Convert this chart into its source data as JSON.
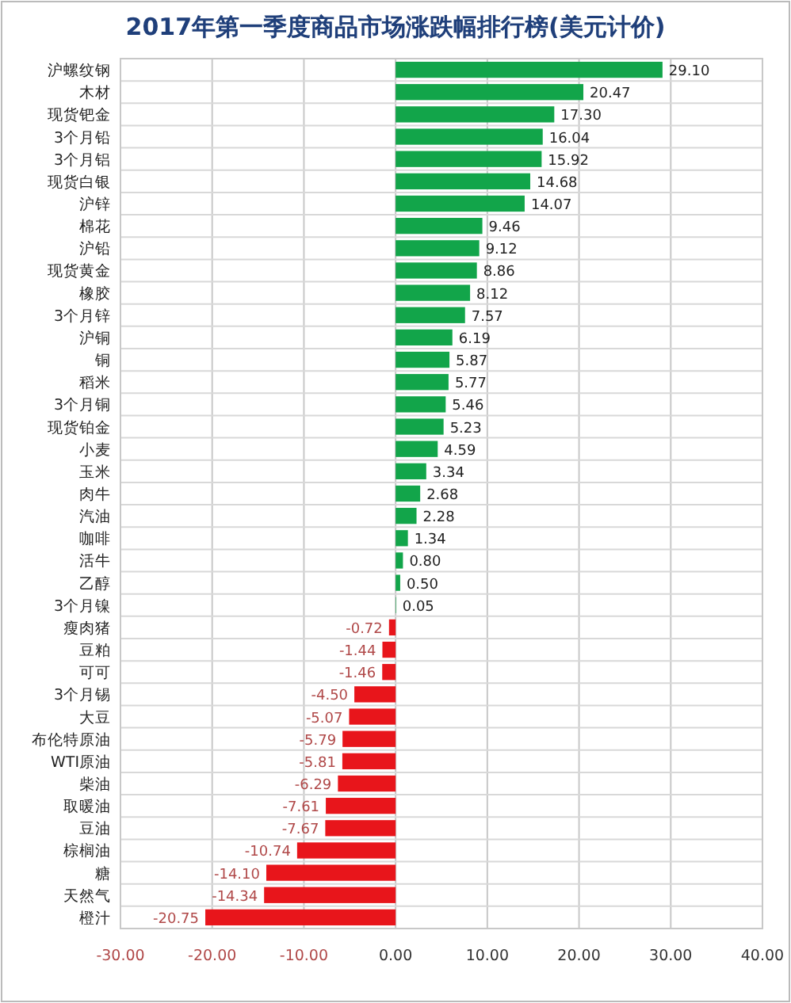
{
  "chart_data": {
    "type": "bar",
    "orientation": "horizontal",
    "title": "2017年第一季度商品市场涨跌幅排行榜(美元计价)",
    "categories": [
      "沪螺纹钢",
      "木材",
      "现货钯金",
      "3个月铅",
      "3个月铝",
      "现货白银",
      "沪锌",
      "棉花",
      "沪铅",
      "现货黄金",
      "橡胶",
      "3个月锌",
      "沪铜",
      "铜",
      "稻米",
      "3个月铜",
      "现货铂金",
      "小麦",
      "玉米",
      "肉牛",
      "汽油",
      "咖啡",
      "活牛",
      "乙醇",
      "3个月镍",
      "瘦肉猪",
      "豆粕",
      "可可",
      "3个月锡",
      "大豆",
      "布伦特原油",
      "WTI原油",
      "柴油",
      "取暖油",
      "豆油",
      "棕榈油",
      "糖",
      "天然气",
      "橙汁"
    ],
    "values": [
      29.1,
      20.47,
      17.3,
      16.04,
      15.92,
      14.68,
      14.07,
      9.46,
      9.12,
      8.86,
      8.12,
      7.57,
      6.19,
      5.87,
      5.77,
      5.46,
      5.23,
      4.59,
      3.34,
      2.68,
      2.28,
      1.34,
      0.8,
      0.5,
      0.05,
      -0.72,
      -1.44,
      -1.46,
      -4.5,
      -5.07,
      -5.79,
      -5.81,
      -6.29,
      -7.61,
      -7.67,
      -10.74,
      -14.1,
      -14.34,
      -20.75
    ],
    "colors": [
      "#12a54a",
      "#12a54a",
      "#12a54a",
      "#12a54a",
      "#12a54a",
      "#12a54a",
      "#12a54a",
      "#12a54a",
      "#12a54a",
      "#12a54a",
      "#12a54a",
      "#12a54a",
      "#12a54a",
      "#12a54a",
      "#12a54a",
      "#12a54a",
      "#12a54a",
      "#12a54a",
      "#12a54a",
      "#12a54a",
      "#12a54a",
      "#12a54a",
      "#12a54a",
      "#12a54a",
      "#12a54a",
      "#e8151b",
      "#e8151b",
      "#e8151b",
      "#e8151b",
      "#e8151b",
      "#e8151b",
      "#e8151b",
      "#e8151b",
      "#e8151b",
      "#e8151b",
      "#e8151b",
      "#e8151b",
      "#e8151b",
      "#e8151b"
    ],
    "xlim": [
      -30,
      40
    ],
    "xticks": [
      {
        "value": -30,
        "label": "-30.00"
      },
      {
        "value": -20,
        "label": "-20.00"
      },
      {
        "value": -10,
        "label": "-10.00"
      },
      {
        "value": 0,
        "label": "0.00"
      },
      {
        "value": 10,
        "label": "10.00"
      },
      {
        "value": 20,
        "label": "20.00"
      },
      {
        "value": 30,
        "label": "30.00"
      },
      {
        "value": 40,
        "label": "40.00"
      }
    ],
    "value_labels": [
      "29.10",
      "20.47",
      "17.30",
      "16.04",
      "15.92",
      "14.68",
      "14.07",
      "9.46",
      "9.12",
      "8.86",
      "8.12",
      "7.57",
      "6.19",
      "5.87",
      "5.77",
      "5.46",
      "5.23",
      "4.59",
      "3.34",
      "2.68",
      "2.28",
      "1.34",
      "0.80",
      "0.50",
      "0.05",
      "-0.72",
      "-1.44",
      "-1.46",
      "-4.50",
      "-5.07",
      "-5.79",
      "-5.81",
      "-6.29",
      "-7.61",
      "-7.67",
      "-10.74",
      "-14.10",
      "-14.34",
      "-20.75"
    ],
    "grid": true
  }
}
